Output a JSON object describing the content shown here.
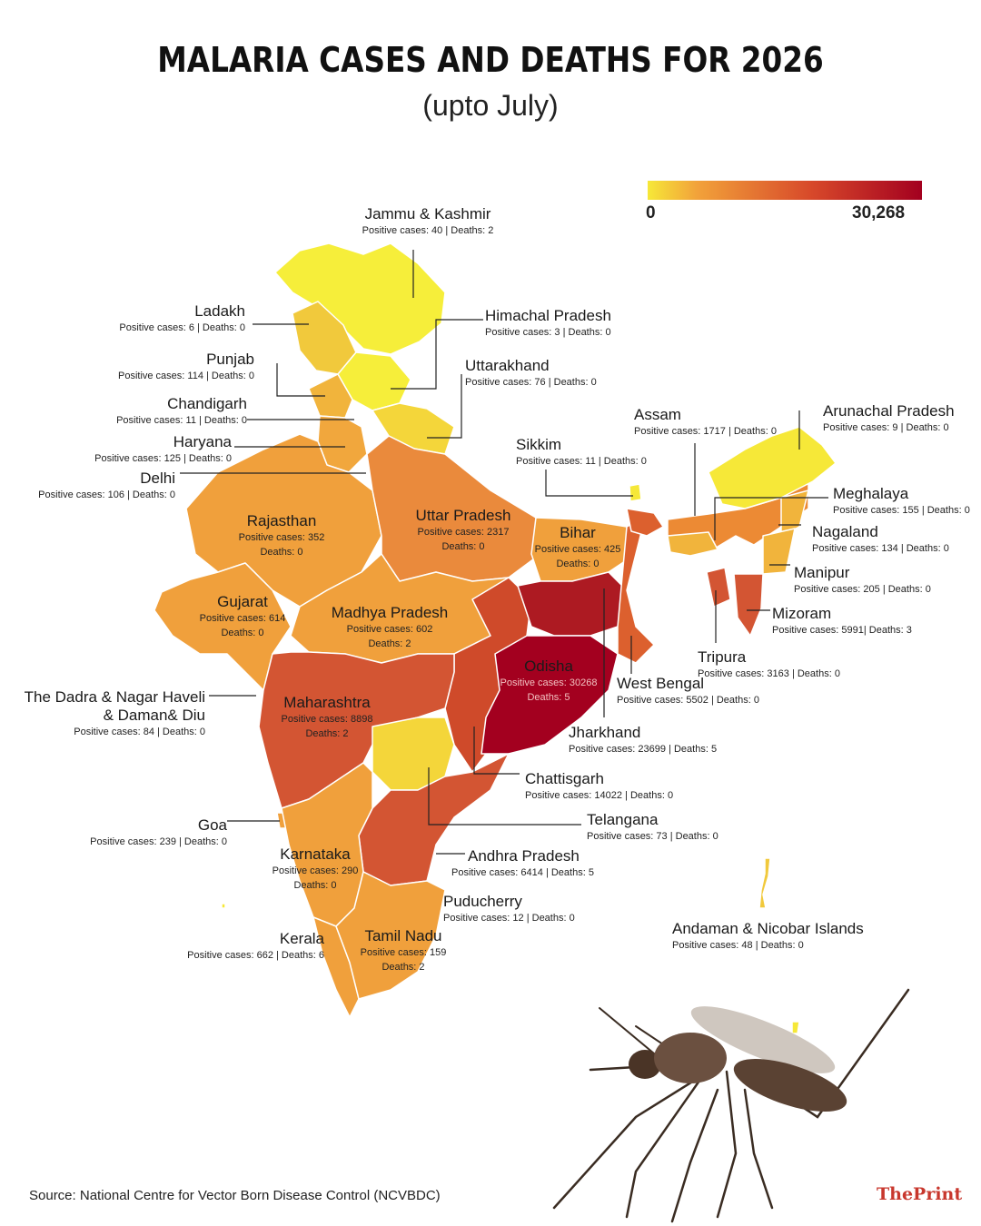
{
  "title": "MALARIA CASES AND DEATHS FOR 2026",
  "subtitle": "(upto July)",
  "legend": {
    "min": "0",
    "max": "30,268",
    "colors": [
      "#f6e838",
      "#f2a23a",
      "#d7482a",
      "#a3001f"
    ]
  },
  "source": "Source: National Centre for Vector Born Disease Control (NCVBDC)",
  "brand": "ThePrint",
  "states": {
    "jk": {
      "name": "Jammu & Kashmir",
      "stats": "Positive cases: 40 | Deaths: 2"
    },
    "ladakh": {
      "name": "Ladakh",
      "stats": "Positive cases: 6 | Deaths: 0"
    },
    "hp": {
      "name": "Himachal Pradesh",
      "stats": "Positive cases: 3 | Deaths: 0"
    },
    "punjab": {
      "name": "Punjab",
      "stats": "Positive cases: 114 | Deaths: 0"
    },
    "uk": {
      "name": "Uttarakhand",
      "stats": "Positive cases: 76 | Deaths: 0"
    },
    "chd": {
      "name": "Chandigarh",
      "stats": "Positive cases: 11 | Deaths: 0"
    },
    "haryana": {
      "name": "Haryana",
      "stats": "Positive cases: 125 | Deaths: 0"
    },
    "delhi": {
      "name": "Delhi",
      "stats": "Positive cases: 106 | Deaths: 0"
    },
    "assam": {
      "name": "Assam",
      "stats": "Positive cases: 1717 | Deaths: 0"
    },
    "arunachal": {
      "name": "Arunachal Pradesh",
      "stats": "Positive cases: 9 | Deaths: 0"
    },
    "sikkim": {
      "name": "Sikkim",
      "stats": "Positive cases: 11 | Deaths: 0"
    },
    "meghalaya": {
      "name": "Meghalaya",
      "stats": "Positive cases: 155 | Deaths: 0"
    },
    "rajasthan": {
      "name": "Rajasthan",
      "stats1": "Positive cases: 352",
      "stats2": "Deaths: 0"
    },
    "up": {
      "name": "Uttar Pradesh",
      "stats1": "Positive cases: 2317",
      "stats2": "Deaths: 0"
    },
    "bihar": {
      "name": "Bihar",
      "stats1": "Positive cases: 425",
      "stats2": "Deaths: 0"
    },
    "nagaland": {
      "name": "Nagaland",
      "stats": "Positive cases: 134 | Deaths: 0"
    },
    "manipur": {
      "name": "Manipur",
      "stats": "Positive cases: 205 | Deaths: 0"
    },
    "gujarat": {
      "name": "Gujarat",
      "stats1": "Positive cases: 614",
      "stats2": "Deaths: 0"
    },
    "mp": {
      "name": "Madhya Pradesh",
      "stats1": "Positive cases: 602",
      "stats2": "Deaths: 2"
    },
    "mizoram": {
      "name": "Mizoram",
      "stats": "Positive cases: 5991| Deaths: 3"
    },
    "tripura": {
      "name": "Tripura",
      "stats": "Positive cases: 3163 | Deaths: 0"
    },
    "odisha": {
      "name": "Odisha",
      "stats1": "Positive cases: 30268",
      "stats2": "Deaths: 5"
    },
    "wb": {
      "name": "West Bengal",
      "stats": "Positive cases: 5502 | Deaths: 0"
    },
    "dnh": {
      "name1": "The Dadra & Nagar Haveli",
      "name2": "& Daman& Diu",
      "stats": "Positive cases: 84 | Deaths: 0"
    },
    "maharashtra": {
      "name": "Maharashtra",
      "stats1": "Positive cases: 8898",
      "stats2": "Deaths: 2"
    },
    "jharkhand": {
      "name": "Jharkhand",
      "stats": "Positive cases: 23699 | Deaths: 5"
    },
    "chhattisgarh": {
      "name": "Chattisgarh",
      "stats": "Positive cases: 14022 | Deaths: 0"
    },
    "goa": {
      "name": "Goa",
      "stats": "Positive cases: 239 | Deaths: 0"
    },
    "telangana": {
      "name": "Telangana",
      "stats": "Positive cases: 73 | Deaths: 0"
    },
    "karnataka": {
      "name": "Karnataka",
      "stats1": "Positive cases: 290",
      "stats2": "Deaths: 0"
    },
    "ap": {
      "name": "Andhra Pradesh",
      "stats": "Positive cases: 6414 | Deaths: 5"
    },
    "puducherry": {
      "name": "Puducherry",
      "stats": "Positive cases: 12 | Deaths: 0"
    },
    "andaman": {
      "name": "Andaman & Nicobar Islands",
      "stats": "Positive cases: 48 | Deaths: 0"
    },
    "kerala": {
      "name": "Kerala",
      "stats": "Positive cases: 662 | Deaths: 6"
    },
    "tn": {
      "name": "Tamil Nadu",
      "stats1": "Positive cases: 159",
      "stats2": "Deaths: 2"
    }
  }
}
